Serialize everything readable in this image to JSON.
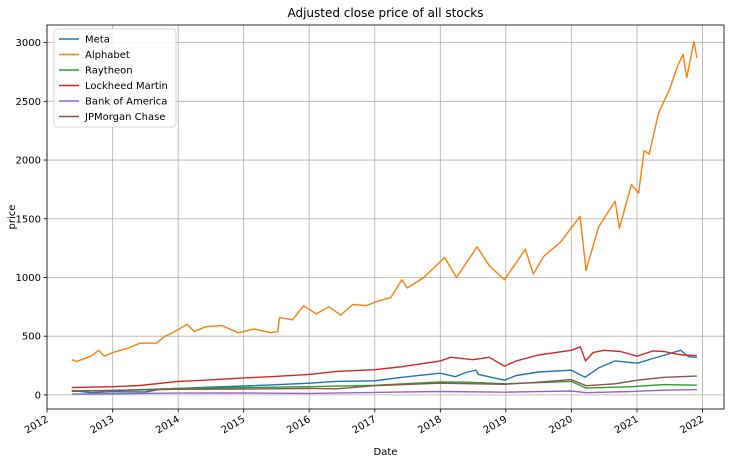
{
  "chart_data": {
    "type": "line",
    "title": "Adjusted close price of all stocks",
    "xlabel": "Date",
    "ylabel": "price",
    "xlim": [
      "2012-01-01",
      "2022-05-01"
    ],
    "ylim": [
      -120,
      3150
    ],
    "grid": true,
    "legend_position": "upper-left",
    "x_ticks": [
      "2012",
      "2013",
      "2014",
      "2015",
      "2016",
      "2017",
      "2018",
      "2019",
      "2020",
      "2021",
      "2022"
    ],
    "y_ticks": [
      0,
      500,
      1000,
      1500,
      2000,
      2500,
      3000
    ],
    "series": [
      {
        "name": "Meta",
        "color": "#1f77b4",
        "points": [
          [
            "2012-05-18",
            38
          ],
          [
            "2012-09-01",
            19
          ],
          [
            "2013-01-01",
            27
          ],
          [
            "2013-07-01",
            25
          ],
          [
            "2013-10-01",
            50
          ],
          [
            "2014-01-01",
            55
          ],
          [
            "2014-06-01",
            65
          ],
          [
            "2015-01-01",
            76
          ],
          [
            "2015-06-01",
            85
          ],
          [
            "2016-01-01",
            100
          ],
          [
            "2016-06-01",
            115
          ],
          [
            "2017-01-01",
            120
          ],
          [
            "2017-06-01",
            150
          ],
          [
            "2018-01-01",
            185
          ],
          [
            "2018-03-25",
            155
          ],
          [
            "2018-06-01",
            195
          ],
          [
            "2018-07-20",
            210
          ],
          [
            "2018-08-01",
            175
          ],
          [
            "2018-12-24",
            125
          ],
          [
            "2019-03-01",
            165
          ],
          [
            "2019-07-01",
            195
          ],
          [
            "2020-01-01",
            210
          ],
          [
            "2020-03-18",
            150
          ],
          [
            "2020-06-01",
            230
          ],
          [
            "2020-09-01",
            290
          ],
          [
            "2021-01-01",
            270
          ],
          [
            "2021-04-01",
            310
          ],
          [
            "2021-09-01",
            380
          ],
          [
            "2021-10-15",
            325
          ],
          [
            "2021-12-01",
            320
          ]
        ]
      },
      {
        "name": "Alphabet",
        "color": "#ff7f0e",
        "points": [
          [
            "2012-05-18",
            300
          ],
          [
            "2012-06-15",
            285
          ],
          [
            "2012-09-01",
            330
          ],
          [
            "2012-10-15",
            380
          ],
          [
            "2012-11-15",
            330
          ],
          [
            "2013-01-01",
            360
          ],
          [
            "2013-04-01",
            400
          ],
          [
            "2013-06-01",
            440
          ],
          [
            "2013-09-01",
            440
          ],
          [
            "2013-10-20",
            500
          ],
          [
            "2013-12-01",
            530
          ],
          [
            "2014-02-20",
            600
          ],
          [
            "2014-04-01",
            540
          ],
          [
            "2014-06-01",
            580
          ],
          [
            "2014-09-01",
            590
          ],
          [
            "2014-12-01",
            530
          ],
          [
            "2015-03-01",
            560
          ],
          [
            "2015-06-01",
            530
          ],
          [
            "2015-07-10",
            540
          ],
          [
            "2015-07-20",
            660
          ],
          [
            "2015-10-01",
            640
          ],
          [
            "2015-12-01",
            760
          ],
          [
            "2016-02-10",
            690
          ],
          [
            "2016-04-20",
            750
          ],
          [
            "2016-06-25",
            680
          ],
          [
            "2016-09-01",
            770
          ],
          [
            "2016-11-15",
            760
          ],
          [
            "2017-01-01",
            790
          ],
          [
            "2017-04-01",
            830
          ],
          [
            "2017-06-01",
            980
          ],
          [
            "2017-07-01",
            910
          ],
          [
            "2017-10-01",
            1000
          ],
          [
            "2018-01-25",
            1170
          ],
          [
            "2018-04-01",
            1000
          ],
          [
            "2018-07-25",
            1260
          ],
          [
            "2018-10-01",
            1100
          ],
          [
            "2018-12-24",
            980
          ],
          [
            "2019-04-20",
            1240
          ],
          [
            "2019-06-03",
            1030
          ],
          [
            "2019-08-01",
            1180
          ],
          [
            "2019-11-01",
            1300
          ],
          [
            "2020-02-19",
            1520
          ],
          [
            "2020-03-23",
            1060
          ],
          [
            "2020-06-01",
            1430
          ],
          [
            "2020-09-01",
            1650
          ],
          [
            "2020-09-25",
            1420
          ],
          [
            "2020-12-01",
            1790
          ],
          [
            "2021-01-10",
            1720
          ],
          [
            "2021-02-10",
            2080
          ],
          [
            "2021-03-10",
            2050
          ],
          [
            "2021-05-01",
            2400
          ],
          [
            "2021-07-01",
            2600
          ],
          [
            "2021-08-15",
            2800
          ],
          [
            "2021-09-15",
            2900
          ],
          [
            "2021-10-05",
            2700
          ],
          [
            "2021-11-15",
            3010
          ],
          [
            "2021-12-01",
            2870
          ]
        ]
      },
      {
        "name": "Raytheon",
        "color": "#2ca02c",
        "points": [
          [
            "2012-05-18",
            36
          ],
          [
            "2013-01-01",
            38
          ],
          [
            "2014-01-01",
            55
          ],
          [
            "2015-01-01",
            62
          ],
          [
            "2016-01-01",
            70
          ],
          [
            "2017-01-01",
            82
          ],
          [
            "2018-01-01",
            110
          ],
          [
            "2018-06-01",
            108
          ],
          [
            "2019-01-01",
            95
          ],
          [
            "2020-01-01",
            115
          ],
          [
            "2020-03-20",
            60
          ],
          [
            "2020-04-15",
            60
          ],
          [
            "2020-12-01",
            70
          ],
          [
            "2021-06-01",
            88
          ],
          [
            "2021-12-01",
            83
          ]
        ]
      },
      {
        "name": "Lockheed Martin",
        "color": "#d62728",
        "points": [
          [
            "2012-05-18",
            62
          ],
          [
            "2013-01-01",
            70
          ],
          [
            "2013-06-01",
            80
          ],
          [
            "2014-01-01",
            115
          ],
          [
            "2014-06-01",
            125
          ],
          [
            "2015-01-01",
            145
          ],
          [
            "2015-06-01",
            155
          ],
          [
            "2016-01-01",
            175
          ],
          [
            "2016-06-01",
            200
          ],
          [
            "2017-01-01",
            215
          ],
          [
            "2017-06-01",
            240
          ],
          [
            "2018-01-01",
            290
          ],
          [
            "2018-03-01",
            320
          ],
          [
            "2018-07-01",
            300
          ],
          [
            "2018-10-01",
            320
          ],
          [
            "2018-12-24",
            245
          ],
          [
            "2019-03-01",
            290
          ],
          [
            "2019-07-01",
            340
          ],
          [
            "2020-01-01",
            380
          ],
          [
            "2020-02-20",
            410
          ],
          [
            "2020-03-20",
            290
          ],
          [
            "2020-05-01",
            360
          ],
          [
            "2020-07-01",
            380
          ],
          [
            "2020-10-01",
            370
          ],
          [
            "2021-01-01",
            330
          ],
          [
            "2021-04-01",
            375
          ],
          [
            "2021-06-01",
            370
          ],
          [
            "2021-08-01",
            350
          ],
          [
            "2021-09-15",
            340
          ],
          [
            "2021-12-01",
            335
          ]
        ]
      },
      {
        "name": "Bank of America",
        "color": "#9467bd",
        "points": [
          [
            "2012-05-18",
            7
          ],
          [
            "2013-01-01",
            10
          ],
          [
            "2014-01-01",
            15
          ],
          [
            "2015-01-01",
            16
          ],
          [
            "2016-01-01",
            13
          ],
          [
            "2017-01-01",
            21
          ],
          [
            "2018-01-01",
            29
          ],
          [
            "2018-12-24",
            23
          ],
          [
            "2019-06-01",
            27
          ],
          [
            "2020-01-01",
            33
          ],
          [
            "2020-03-23",
            19
          ],
          [
            "2020-12-01",
            29
          ],
          [
            "2021-06-01",
            40
          ],
          [
            "2021-12-01",
            45
          ]
        ]
      },
      {
        "name": "JPMorgan Chase",
        "color": "#8c564b",
        "points": [
          [
            "2012-05-18",
            30
          ],
          [
            "2013-01-01",
            38
          ],
          [
            "2014-01-01",
            48
          ],
          [
            "2015-01-01",
            50
          ],
          [
            "2016-01-01",
            55
          ],
          [
            "2016-06-01",
            52
          ],
          [
            "2017-01-01",
            78
          ],
          [
            "2018-01-01",
            100
          ],
          [
            "2018-12-24",
            90
          ],
          [
            "2019-06-01",
            105
          ],
          [
            "2020-01-01",
            130
          ],
          [
            "2020-03-23",
            78
          ],
          [
            "2020-09-01",
            95
          ],
          [
            "2021-01-01",
            125
          ],
          [
            "2021-06-01",
            150
          ],
          [
            "2021-12-01",
            160
          ]
        ]
      }
    ]
  }
}
